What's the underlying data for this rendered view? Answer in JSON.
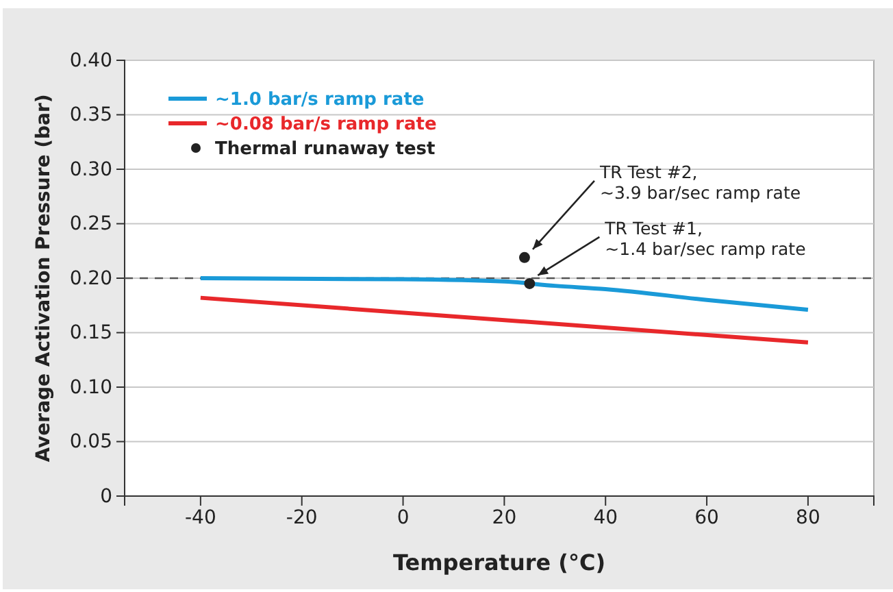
{
  "chart_data": {
    "type": "line",
    "xlabel": "Temperature (°C)",
    "ylabel": "Average Activation Pressure (bar)",
    "xlim": [
      -55,
      93
    ],
    "xticks": [
      -40,
      -20,
      0,
      20,
      40,
      60,
      80
    ],
    "ylim": [
      0,
      0.4
    ],
    "yticks": [
      0,
      0.05,
      {
        "value": 0.1,
        "label": "0.10"
      },
      0.15,
      {
        "value": 0.2,
        "label": "0.20"
      },
      0.25,
      {
        "value": 0.3,
        "label": "0.30"
      },
      0.35,
      {
        "value": 0.4,
        "label": "0.40"
      }
    ],
    "grid": "y",
    "legend": "top left",
    "series": [
      {
        "name": "~1.0 bar/s ramp rate",
        "color": "#1a9ad8",
        "x": [
          -40,
          0,
          20,
          30,
          40,
          60,
          80
        ],
        "values": [
          0.2,
          0.199,
          0.197,
          0.193,
          0.19,
          0.18,
          0.171
        ]
      },
      {
        "name": "~0.08 bar/s ramp rate",
        "color": "#e8282b",
        "x": [
          -40,
          80
        ],
        "values": [
          0.182,
          0.141
        ]
      },
      {
        "name": "Thermal runaway test",
        "type": "scatter",
        "marker": "circle",
        "color": "#222222",
        "x": [
          24,
          25
        ],
        "values": [
          0.219,
          0.195
        ]
      }
    ],
    "ref_lines": [
      {
        "axis": "y",
        "value": 0.2,
        "color": "#555555",
        "line_style": "dashed"
      }
    ],
    "annotations": [
      {
        "text": "TR Test #2,\n~3.9 bar/sec ramp rate",
        "x": 24,
        "y": 0.219
      },
      {
        "text": "TR Test #1,\n~1.4 bar/sec ramp rate",
        "x": 25,
        "y": 0.195
      }
    ]
  }
}
